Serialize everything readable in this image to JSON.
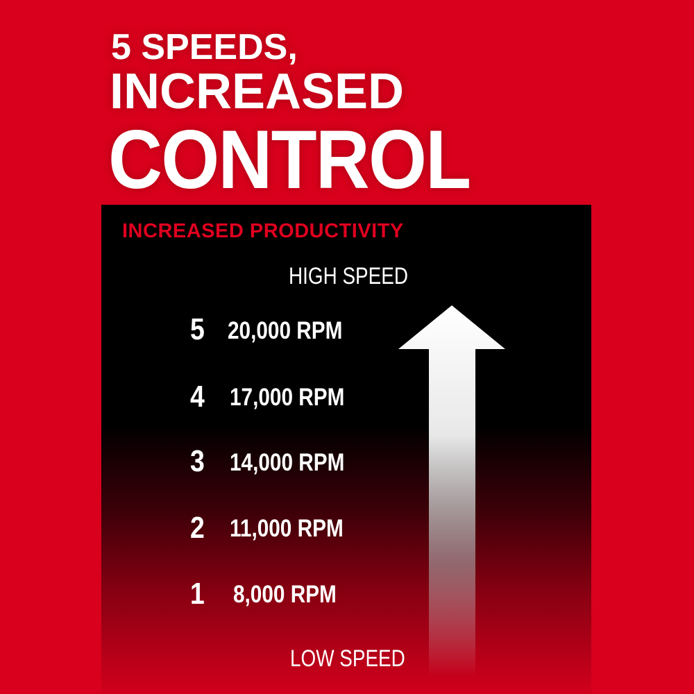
{
  "headline": {
    "line1": "5 SPEEDS,",
    "line2": "INCREASED",
    "line3": "CONTROL"
  },
  "panel": {
    "subtitle": "INCREASED PRODUCTIVITY",
    "high_label": "HIGH SPEED",
    "low_label": "LOW SPEED",
    "speeds": [
      {
        "setting": "5",
        "rpm": "20,000 RPM"
      },
      {
        "setting": "4",
        "rpm": "17,000 RPM"
      },
      {
        "setting": "3",
        "rpm": "14,000 RPM"
      },
      {
        "setting": "2",
        "rpm": "11,000 RPM"
      },
      {
        "setting": "1",
        "rpm": "8,000 RPM"
      }
    ],
    "arrow_icon": "up-arrow-icon"
  },
  "colors": {
    "brand_red": "#d8001c",
    "panel_black": "#000000",
    "text_white": "#ffffff"
  }
}
